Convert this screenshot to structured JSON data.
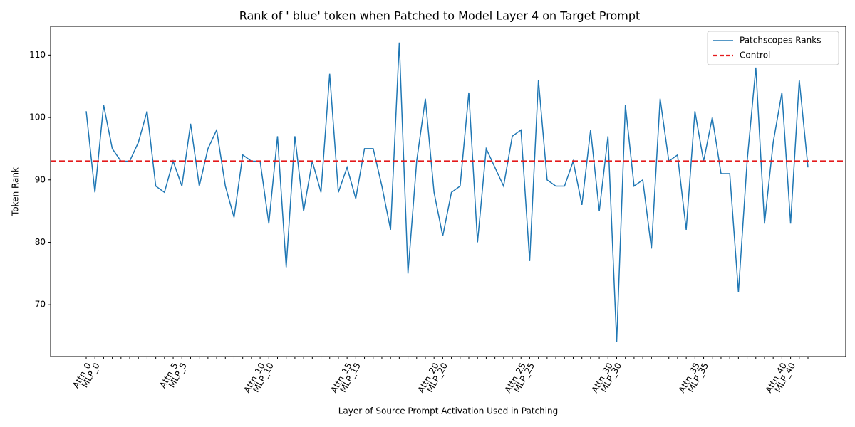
{
  "chart_data": {
    "type": "line",
    "title": "Rank of ' blue' token when Patched to Model Layer 4 on Target Prompt",
    "x_label": "Layer of Source Prompt Activation Used in Patching",
    "y_label": "Token Rank",
    "categories": [
      "Attn_0",
      "MLP_0",
      null,
      null,
      null,
      null,
      null,
      null,
      null,
      null,
      "Attn_5",
      "MLP_5",
      null,
      null,
      null,
      null,
      null,
      null,
      null,
      null,
      "Attn_10",
      "MLP_10",
      null,
      null,
      null,
      null,
      null,
      null,
      null,
      null,
      "Attn_15",
      "MLP_15",
      null,
      null,
      null,
      null,
      null,
      null,
      null,
      null,
      "Attn_20",
      "MLP_20",
      null,
      null,
      null,
      null,
      null,
      null,
      null,
      null,
      "Attn_25",
      "MLP_25",
      null,
      null,
      null,
      null,
      null,
      null,
      null,
      null,
      "Attn_30",
      "MLP_30",
      null,
      null,
      null,
      null,
      null,
      null,
      null,
      null,
      "Attn_35",
      "MLP_35",
      null,
      null,
      null,
      null,
      null,
      null,
      null,
      null,
      "Attn_40",
      "MLP_40",
      null,
      null
    ],
    "series": [
      {
        "name": "Patchscopes Ranks",
        "color": "#1f77b4",
        "values": [
          101,
          88,
          102,
          95,
          93,
          93,
          96,
          101,
          89,
          88,
          93,
          89,
          99,
          89,
          95,
          98,
          89,
          84,
          94,
          93,
          93,
          83,
          97,
          76,
          97,
          85,
          93,
          88,
          107,
          88,
          92,
          87,
          95,
          95,
          89,
          82,
          112,
          75,
          93,
          103,
          88,
          81,
          88,
          89,
          104,
          80,
          95,
          92,
          89,
          97,
          98,
          77,
          106,
          90,
          89,
          89,
          93,
          86,
          98,
          85,
          97,
          64,
          102,
          89,
          90,
          79,
          103,
          93,
          94,
          82,
          101,
          93,
          100,
          91,
          91,
          72,
          93,
          108,
          83,
          96,
          104,
          83,
          106,
          92
        ]
      }
    ],
    "control": {
      "name": "Control",
      "value": 93,
      "color": "#e41a1c"
    },
    "ylim": [
      61.7,
      114.6
    ],
    "yticks": [
      70,
      80,
      90,
      100,
      110
    ],
    "legend": "upper right"
  }
}
